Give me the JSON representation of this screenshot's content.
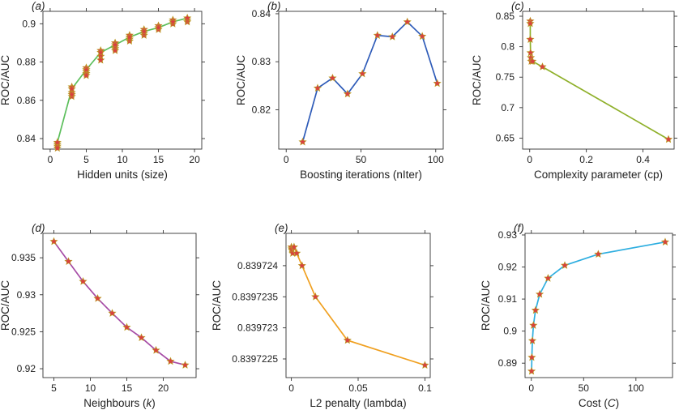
{
  "chart_data": [
    {
      "id": "a",
      "type": "line",
      "panel_label": "(a)",
      "xlabel": "Hidden units (size)",
      "ylabel": "ROC/AUC",
      "xlim": [
        -1,
        21
      ],
      "ylim": [
        0.8345,
        0.9065
      ],
      "xticks": [
        0,
        5,
        10,
        15,
        20
      ],
      "yticks": [
        0.84,
        0.86,
        0.88,
        0.9
      ],
      "ytick_labels": [
        "0.84",
        "0.86",
        "0.88",
        "0.9"
      ],
      "line_color": "#5cbf5c",
      "marker_color": "#d94040",
      "series": [
        {
          "x": [
            1,
            3,
            5,
            7,
            9,
            11,
            13,
            15,
            17,
            19
          ],
          "y": [
            0.838,
            0.866,
            0.876,
            0.885,
            0.889,
            0.893,
            0.896,
            0.898,
            0.901,
            0.903
          ]
        }
      ],
      "extra_points": {
        "x": [
          1,
          1,
          1,
          3,
          3,
          3,
          3,
          5,
          5,
          5,
          5,
          7,
          7,
          7,
          9,
          9,
          9,
          9,
          11,
          11,
          11,
          13,
          13,
          13,
          15,
          15,
          17,
          17,
          19,
          19
        ],
        "y": [
          0.836,
          0.837,
          0.835,
          0.867,
          0.864,
          0.862,
          0.863,
          0.874,
          0.875,
          0.877,
          0.873,
          0.886,
          0.883,
          0.881,
          0.887,
          0.89,
          0.886,
          0.888,
          0.891,
          0.892,
          0.894,
          0.894,
          0.895,
          0.897,
          0.897,
          0.899,
          0.9,
          0.902,
          0.901,
          0.902
        ]
      }
    },
    {
      "id": "b",
      "type": "line",
      "panel_label": "(b)",
      "xlabel": "Boosting iterations (nIter)",
      "ylabel": "ROC/AUC",
      "xlim": [
        -5,
        105
      ],
      "ylim": [
        0.8118,
        0.8405
      ],
      "xticks": [
        0,
        50,
        100
      ],
      "yticks": [
        0.82,
        0.83,
        0.84
      ],
      "ytick_labels": [
        "0.82",
        "0.83",
        "0.84"
      ],
      "line_color": "#2e5bb8",
      "marker_color": "#d94040",
      "series": [
        {
          "x": [
            11,
            21,
            31,
            41,
            51,
            61,
            71,
            81,
            91,
            101
          ],
          "y": [
            0.8133,
            0.8245,
            0.8266,
            0.8233,
            0.8275,
            0.8355,
            0.8352,
            0.8383,
            0.8353,
            0.8255
          ]
        }
      ]
    },
    {
      "id": "c",
      "type": "line",
      "panel_label": "(c)",
      "xlabel": "Complexity parameter (cp)",
      "ylabel": "ROC/AUC",
      "xlim": [
        -0.025,
        0.51
      ],
      "ylim": [
        0.632,
        0.858
      ],
      "xticks": [
        0,
        0.2,
        0.4
      ],
      "xtick_labels": [
        "0",
        "0.2",
        "0.4"
      ],
      "yticks": [
        0.65,
        0.7,
        0.75,
        0.8,
        0.85
      ],
      "ytick_labels": [
        "0.65",
        "0.7",
        "0.75",
        "0.8",
        "0.85"
      ],
      "line_color": "#8fb02a",
      "marker_color": "#d94040",
      "series": [
        {
          "x": [
            0.002,
            0.002,
            0.002,
            0.003,
            0.004,
            0.005,
            0.01,
            0.045,
            0.49
          ],
          "y": [
            0.842,
            0.838,
            0.812,
            0.79,
            0.782,
            0.776,
            0.776,
            0.767,
            0.648
          ]
        }
      ]
    },
    {
      "id": "d",
      "type": "line",
      "panel_label": "(d)",
      "xlabel": "Neighbours (k)",
      "ylabel": "ROC/AUC",
      "xlim": [
        3.5,
        24.5
      ],
      "ylim": [
        0.9188,
        0.9383
      ],
      "xticks": [
        5,
        10,
        15,
        20
      ],
      "yticks": [
        0.92,
        0.925,
        0.93,
        0.935
      ],
      "ytick_labels": [
        "0.92",
        "0.925",
        "0.93",
        "0.935"
      ],
      "line_color": "#a64ca6",
      "marker_color": "#d94040",
      "series": [
        {
          "x": [
            5,
            7,
            9,
            11,
            13,
            15,
            17,
            19,
            21,
            23
          ],
          "y": [
            0.9372,
            0.9345,
            0.9318,
            0.9295,
            0.9275,
            0.9256,
            0.9242,
            0.9225,
            0.921,
            0.9205
          ]
        }
      ]
    },
    {
      "id": "e",
      "type": "line",
      "panel_label": "(e)",
      "xlabel": "L2 penalty (lambda)",
      "ylabel": "ROC/AUC",
      "xlim": [
        -0.004,
        0.104
      ],
      "ylim": [
        0.8397222,
        0.83972452
      ],
      "xticks": [
        0,
        0.05,
        0.1
      ],
      "xtick_labels": [
        "0",
        "0.05",
        "0.1"
      ],
      "yticks": [
        0.8397225,
        0.839723,
        0.8397235,
        0.839724
      ],
      "ytick_labels": [
        "0.8397225",
        "0.839723",
        "0.8397235",
        "0.839724"
      ],
      "line_color": "#f0a020",
      "marker_color": "#d94040",
      "series": [
        {
          "x": [
            0,
            0.0002,
            0.0005,
            0.001,
            0.002,
            0.004,
            0.008,
            0.018,
            0.042,
            0.1
          ],
          "y": [
            0.8397243,
            0.83972427,
            0.83972425,
            0.8397242,
            0.8397243,
            0.8397242,
            0.839724,
            0.8397235,
            0.8397228,
            0.8397224
          ]
        }
      ]
    },
    {
      "id": "f",
      "type": "line",
      "panel_label": "(f)",
      "xlabel": "Cost (C)",
      "ylabel": "ROC/AUC",
      "xlim": [
        -6,
        135
      ],
      "ylim": [
        0.8855,
        0.9305
      ],
      "xticks": [
        0,
        50,
        100
      ],
      "yticks": [
        0.89,
        0.9,
        0.91,
        0.92,
        0.93
      ],
      "ytick_labels": [
        "0.89",
        "0.9",
        "0.91",
        "0.92",
        "0.93"
      ],
      "line_color": "#2eaee0",
      "marker_color": "#d94040",
      "series": [
        {
          "x": [
            0.25,
            0.5,
            1,
            2,
            4,
            8,
            16,
            32,
            64,
            128
          ],
          "y": [
            0.8875,
            0.8918,
            0.897,
            0.9018,
            0.9065,
            0.9115,
            0.9165,
            0.9205,
            0.924,
            0.9278
          ]
        }
      ]
    }
  ]
}
